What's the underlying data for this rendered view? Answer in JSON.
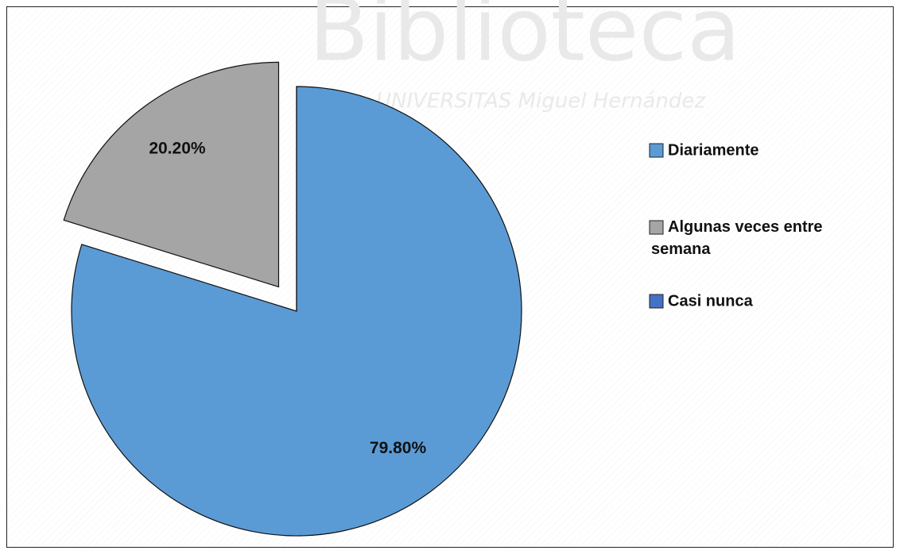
{
  "chart_data": {
    "type": "pie",
    "watermark": [
      "Biblioteca",
      "UNIVERSITAS Miguel Hernández"
    ],
    "categories": [
      "Diariamente",
      "Algunas veces entre semana",
      "Casi nunca"
    ],
    "values": [
      79.8,
      20.2,
      0
    ],
    "value_labels": [
      "79.80%",
      "20.20%",
      null
    ],
    "colors": [
      "#5b9bd5",
      "#a5a5a5",
      "#4472c4"
    ],
    "legend": "right"
  }
}
